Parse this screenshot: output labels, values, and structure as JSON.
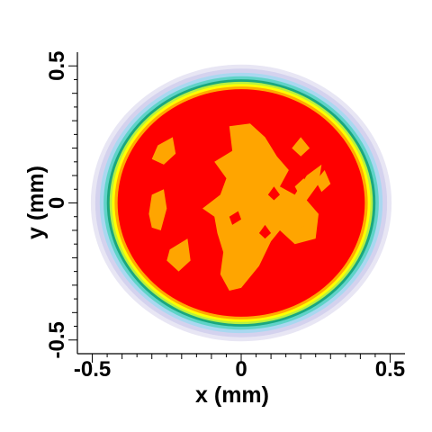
{
  "chart_data": {
    "type": "heatmap",
    "title": "",
    "xlabel": "x (mm)",
    "ylabel": "y (mm)",
    "xlim": [
      -0.55,
      0.55
    ],
    "ylim": [
      -0.55,
      0.55
    ],
    "x_ticks": [
      {
        "value": -0.5,
        "label": "-0.5"
      },
      {
        "value": 0,
        "label": "0"
      },
      {
        "value": 0.5,
        "label": "0.5"
      }
    ],
    "y_ticks": [
      {
        "value": -0.5,
        "label": "-0.5"
      },
      {
        "value": 0,
        "label": "0"
      },
      {
        "value": 0.5,
        "label": "0.5"
      }
    ],
    "minor_tick_step": 0.1,
    "grid": false,
    "description_of_field": "filled contour of a circular spot centered at (0, 0); intensity falls off at the rim",
    "contour_bands": [
      {
        "color": "#e8e6f4",
        "radius": 0.505
      },
      {
        "color": "#d4d2ee",
        "radius": 0.49
      },
      {
        "color": "#a9d8f0",
        "radius": 0.475
      },
      {
        "color": "#5fd3c8",
        "radius": 0.462
      },
      {
        "color": "#1aa77f",
        "radius": 0.451
      },
      {
        "color": "#b8f040",
        "radius": 0.442
      },
      {
        "color": "#ffff00",
        "radius": 0.434
      },
      {
        "color": "#ffaa00",
        "radius": 0.425
      },
      {
        "color": "#ff0000",
        "radius": 0.415
      }
    ],
    "core_color": "#ffa500",
    "core_region": [
      [
        -0.04,
        0.28
      ],
      [
        0.03,
        0.29
      ],
      [
        0.08,
        0.24
      ],
      [
        0.12,
        0.17
      ],
      [
        0.16,
        0.12
      ],
      [
        0.13,
        0.06
      ],
      [
        0.18,
        0.03
      ],
      [
        0.22,
        0.1
      ],
      [
        0.27,
        0.14
      ],
      [
        0.26,
        0.07
      ],
      [
        0.22,
        0.01
      ],
      [
        0.26,
        -0.04
      ],
      [
        0.25,
        -0.13
      ],
      [
        0.18,
        -0.15
      ],
      [
        0.13,
        -0.1
      ],
      [
        0.1,
        -0.14
      ],
      [
        0.06,
        -0.23
      ],
      [
        0.0,
        -0.31
      ],
      [
        -0.04,
        -0.32
      ],
      [
        -0.07,
        -0.26
      ],
      [
        -0.06,
        -0.18
      ],
      [
        -0.08,
        -0.11
      ],
      [
        -0.09,
        -0.05
      ],
      [
        -0.13,
        -0.02
      ],
      [
        -0.07,
        0.03
      ],
      [
        -0.05,
        0.09
      ],
      [
        -0.09,
        0.15
      ],
      [
        -0.03,
        0.19
      ]
    ],
    "core_islands": [
      [
        [
          -0.28,
          0.21
        ],
        [
          -0.23,
          0.24
        ],
        [
          -0.22,
          0.18
        ],
        [
          -0.26,
          0.14
        ],
        [
          -0.3,
          0.16
        ]
      ],
      [
        [
          -0.3,
          0.03
        ],
        [
          -0.26,
          0.05
        ],
        [
          -0.25,
          -0.02
        ],
        [
          -0.27,
          -0.1
        ],
        [
          -0.3,
          -0.09
        ],
        [
          -0.31,
          -0.04
        ]
      ],
      [
        [
          -0.24,
          -0.17
        ],
        [
          -0.18,
          -0.13
        ],
        [
          -0.17,
          -0.21
        ],
        [
          -0.21,
          -0.25
        ],
        [
          -0.25,
          -0.21
        ]
      ],
      [
        [
          0.17,
          0.2
        ],
        [
          0.2,
          0.24
        ],
        [
          0.23,
          0.2
        ],
        [
          0.2,
          0.17
        ]
      ],
      [
        [
          0.18,
          0.06
        ],
        [
          0.21,
          0.09
        ],
        [
          0.23,
          0.05
        ],
        [
          0.2,
          0.02
        ]
      ],
      [
        [
          0.2,
          -0.09
        ],
        [
          0.24,
          -0.07
        ],
        [
          0.25,
          -0.12
        ],
        [
          0.21,
          -0.13
        ]
      ],
      [
        [
          0.25,
          0.08
        ],
        [
          0.28,
          0.12
        ],
        [
          0.3,
          0.07
        ],
        [
          0.27,
          0.04
        ]
      ]
    ],
    "core_holes": [
      [
        [
          0.09,
          0.03
        ],
        [
          0.11,
          0.06
        ],
        [
          0.13,
          0.03
        ],
        [
          0.11,
          0.01
        ]
      ],
      [
        [
          0.06,
          -0.11
        ],
        [
          0.08,
          -0.08
        ],
        [
          0.1,
          -0.11
        ],
        [
          0.08,
          -0.13
        ]
      ],
      [
        [
          -0.04,
          -0.05
        ],
        [
          -0.01,
          -0.03
        ],
        [
          0.0,
          -0.06
        ],
        [
          -0.03,
          -0.08
        ]
      ]
    ]
  }
}
